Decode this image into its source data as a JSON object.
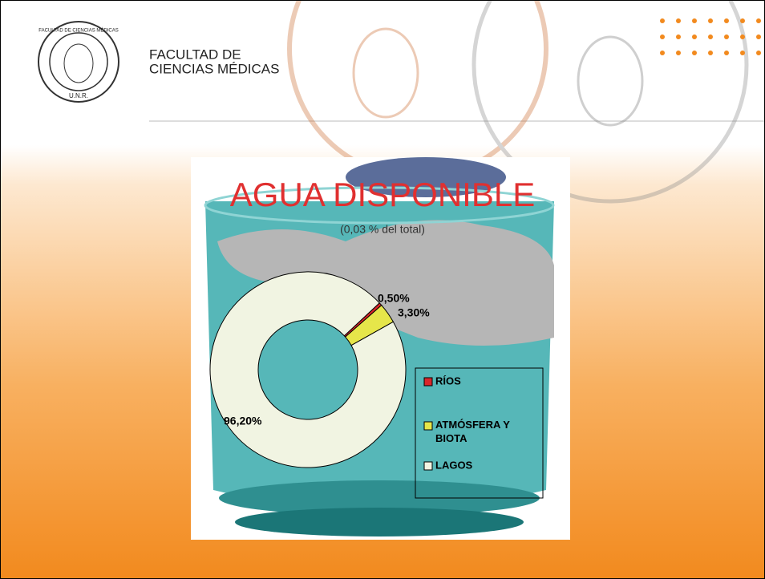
{
  "header": {
    "faculty": [
      "FACULTAD DE",
      "CIENCIAS MÉDICAS"
    ],
    "seal": [
      "FACULTAD DE CIENCIAS MÉDICAS",
      "U.N.R."
    ]
  },
  "chart_data": {
    "type": "donut",
    "title": "AGUA DISPONIBLE",
    "subtitle": "(0,03 % del total)",
    "categories": [
      "RÍOS",
      "ATMÓSFERA Y BIOTA",
      "LAGOS"
    ],
    "values": [
      0.5,
      3.3,
      96.2
    ],
    "value_labels": [
      "0,50%",
      "3,30%",
      "96,20%"
    ],
    "colors": [
      "#d8262a",
      "#e6e64a",
      "#f1f4e2"
    ]
  }
}
